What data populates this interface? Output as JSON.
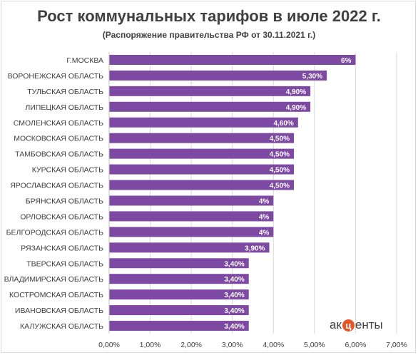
{
  "chart_data": {
    "type": "bar",
    "orientation": "horizontal",
    "title": "Рост коммунальных тарифов в июле 2022 г.",
    "subtitle": "(Распоряжение правительства РФ от 30.11.2021 г.)",
    "categories": [
      "Г.МОСКВА",
      "ВОРОНЕЖСКАЯ ОБЛАСТЬ",
      "ТУЛЬСКАЯ ОБЛАСТЬ",
      "ЛИПЕЦКАЯ ОБЛАСТЬ",
      "СМОЛЕНСКАЯ ОБЛАСТЬ",
      "МОСКОВСКАЯ ОБЛАСТЬ",
      "ТАМБОВСКАЯ ОБЛАСТЬ",
      "КУРСКАЯ ОБЛАСТЬ",
      "ЯРОСЛАВСКАЯ ОБЛАСТЬ",
      "БРЯНСКАЯ ОБЛАСТЬ",
      "ОРЛОВСКАЯ ОБЛАСТЬ",
      "БЕЛГОРОДСКАЯ ОБЛАСТЬ",
      "РЯЗАНСКАЯ ОБЛАСТЬ",
      "ТВЕРСКАЯ ОБЛАСТЬ",
      "ВЛАДИМИРСКАЯ ОБЛАСТЬ",
      "КОСТРОМСКАЯ ОБЛАСТЬ",
      "ИВАНОВСКАЯ ОБЛАСТЬ",
      "КАЛУЖСКАЯ ОБЛАСТЬ"
    ],
    "values": [
      6.0,
      5.3,
      4.9,
      4.9,
      4.6,
      4.5,
      4.5,
      4.5,
      4.5,
      4.0,
      4.0,
      4.0,
      3.9,
      3.4,
      3.4,
      3.4,
      3.4,
      3.4
    ],
    "data_labels": [
      "6%",
      "5,30%",
      "4,90%",
      "4,90%",
      "4,60%",
      "4,50%",
      "4,50%",
      "4,50%",
      "4,50%",
      "4%",
      "4%",
      "4%",
      "3,90%",
      "3,40%",
      "3,40%",
      "3,40%",
      "3,40%",
      "3,40%"
    ],
    "x_ticks": [
      "0,00%",
      "1,00%",
      "2,00%",
      "3,00%",
      "4,00%",
      "5,00%",
      "6,00%",
      "7,00%"
    ],
    "xlim": [
      0,
      7
    ],
    "grid": true,
    "legend": "none",
    "bar_color": "#7e49a3",
    "grid_color": "#d9d9d9"
  },
  "logo": {
    "prefix": "ак",
    "mid": "ц",
    "suffix": "енты"
  }
}
